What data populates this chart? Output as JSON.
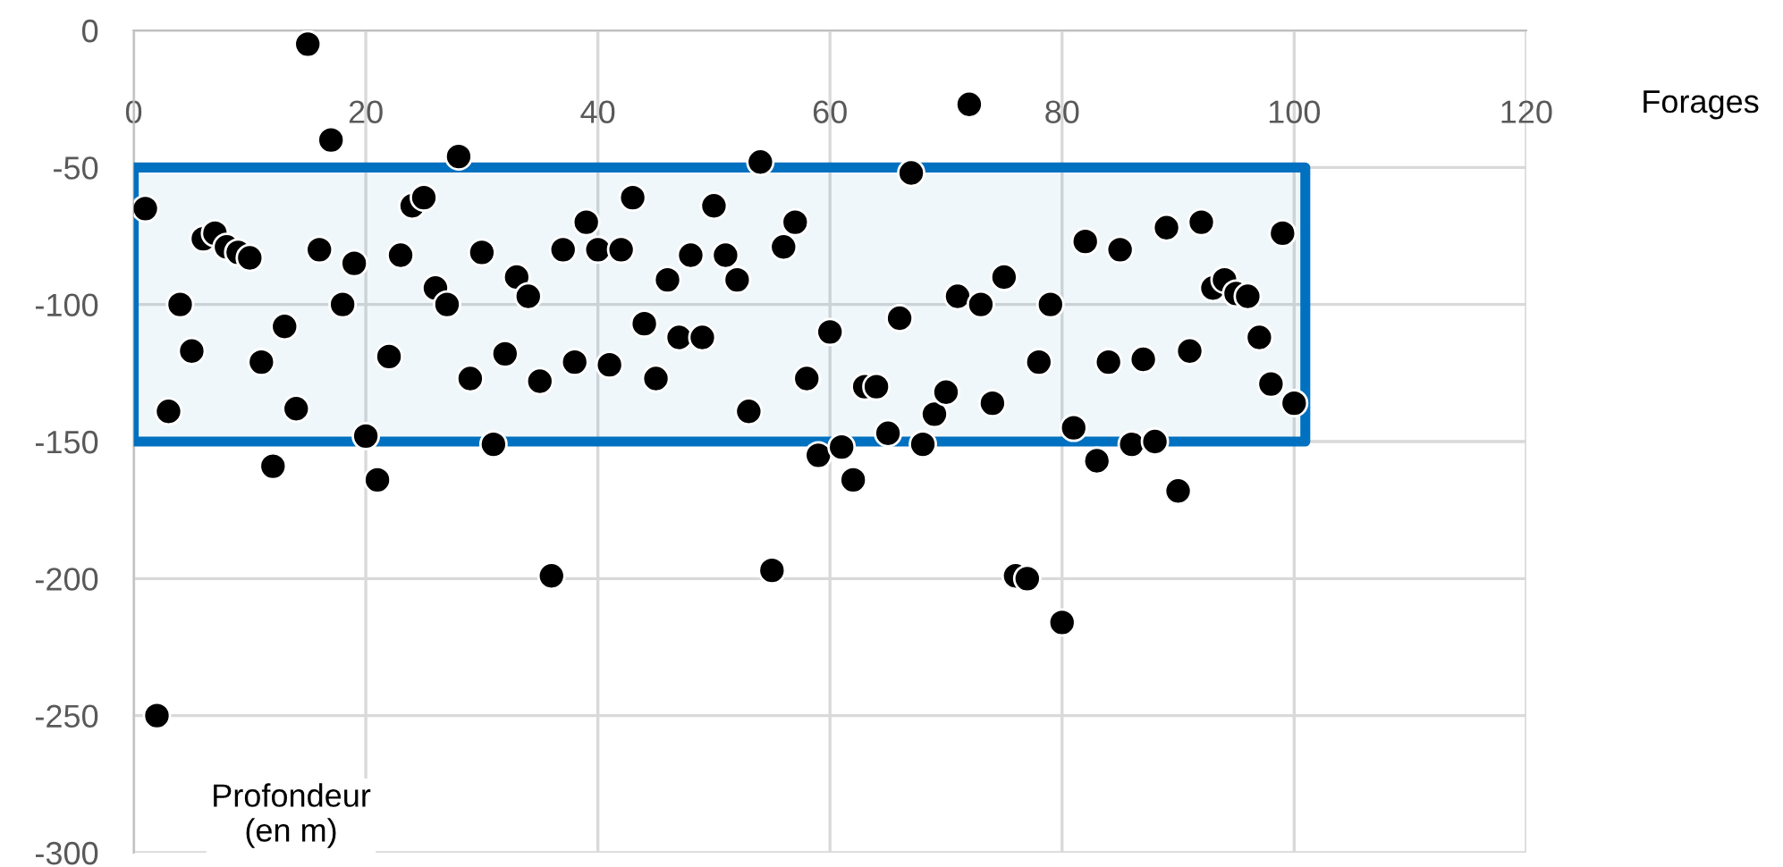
{
  "chart_data": {
    "type": "scatter",
    "xlabel": "Forages",
    "ylabel": "Profondeur\n(en m)",
    "x": [
      1,
      2,
      3,
      4,
      5,
      6,
      7,
      8,
      9,
      10,
      11,
      12,
      13,
      14,
      15,
      16,
      17,
      18,
      19,
      20,
      21,
      22,
      23,
      24,
      25,
      26,
      27,
      28,
      29,
      30,
      31,
      32,
      33,
      34,
      35,
      36,
      37,
      38,
      39,
      40,
      41,
      42,
      43,
      44,
      45,
      46,
      47,
      48,
      49,
      50,
      51,
      52,
      53,
      54,
      55,
      56,
      57,
      58,
      59,
      60,
      61,
      62,
      63,
      64,
      65,
      66,
      67,
      68,
      69,
      70,
      71,
      72,
      73,
      74,
      75,
      76,
      77,
      78,
      79,
      80,
      81,
      82,
      83,
      84,
      85,
      86,
      87,
      88,
      89,
      90,
      91,
      92,
      93,
      94,
      95,
      96,
      97,
      98,
      99,
      100
    ],
    "series": [
      {
        "color": "#000000",
        "values": [
          -65,
          -250,
          -139,
          -100,
          -117,
          -76,
          -74,
          -79,
          -81,
          -83,
          -121,
          -159,
          -108,
          -138,
          -5,
          -80,
          -40,
          -100,
          -85,
          -148,
          -164,
          -119,
          -82,
          -64,
          -61,
          -94,
          -100,
          -46,
          -127,
          -81,
          -151,
          -118,
          -90,
          -97,
          -128,
          -199,
          -80,
          -121,
          -70,
          -80,
          -122,
          -80,
          -61,
          -107,
          -127,
          -91,
          -112,
          -82,
          -112,
          -64,
          -82,
          -91,
          -139,
          -48,
          -197,
          -79,
          -70,
          -127,
          -155,
          -110,
          -152,
          -164,
          -130,
          -130,
          -147,
          -105,
          -52,
          -151,
          -140,
          -132,
          -97,
          -27,
          -100,
          -136,
          -90,
          -199,
          -200,
          -121,
          -100,
          -216,
          -145,
          -77,
          -157,
          -121,
          -80,
          -151,
          -120,
          -150,
          -72,
          -168,
          -117,
          -70,
          -94,
          -91,
          -96,
          -97,
          -112,
          -129,
          -74,
          -136
        ]
      }
    ],
    "xlim": [
      0,
      120
    ],
    "ylim": [
      -300,
      0
    ],
    "xticks": [
      0,
      20,
      40,
      60,
      80,
      100,
      120
    ],
    "yticks": [
      -300,
      -250,
      -200,
      -150,
      -100,
      -50,
      0
    ],
    "bands": [
      {
        "axis": "y",
        "from": -150,
        "to": -50,
        "color": "#0070c0"
      }
    ],
    "grid": true,
    "marker": "circle",
    "legend": false
  }
}
